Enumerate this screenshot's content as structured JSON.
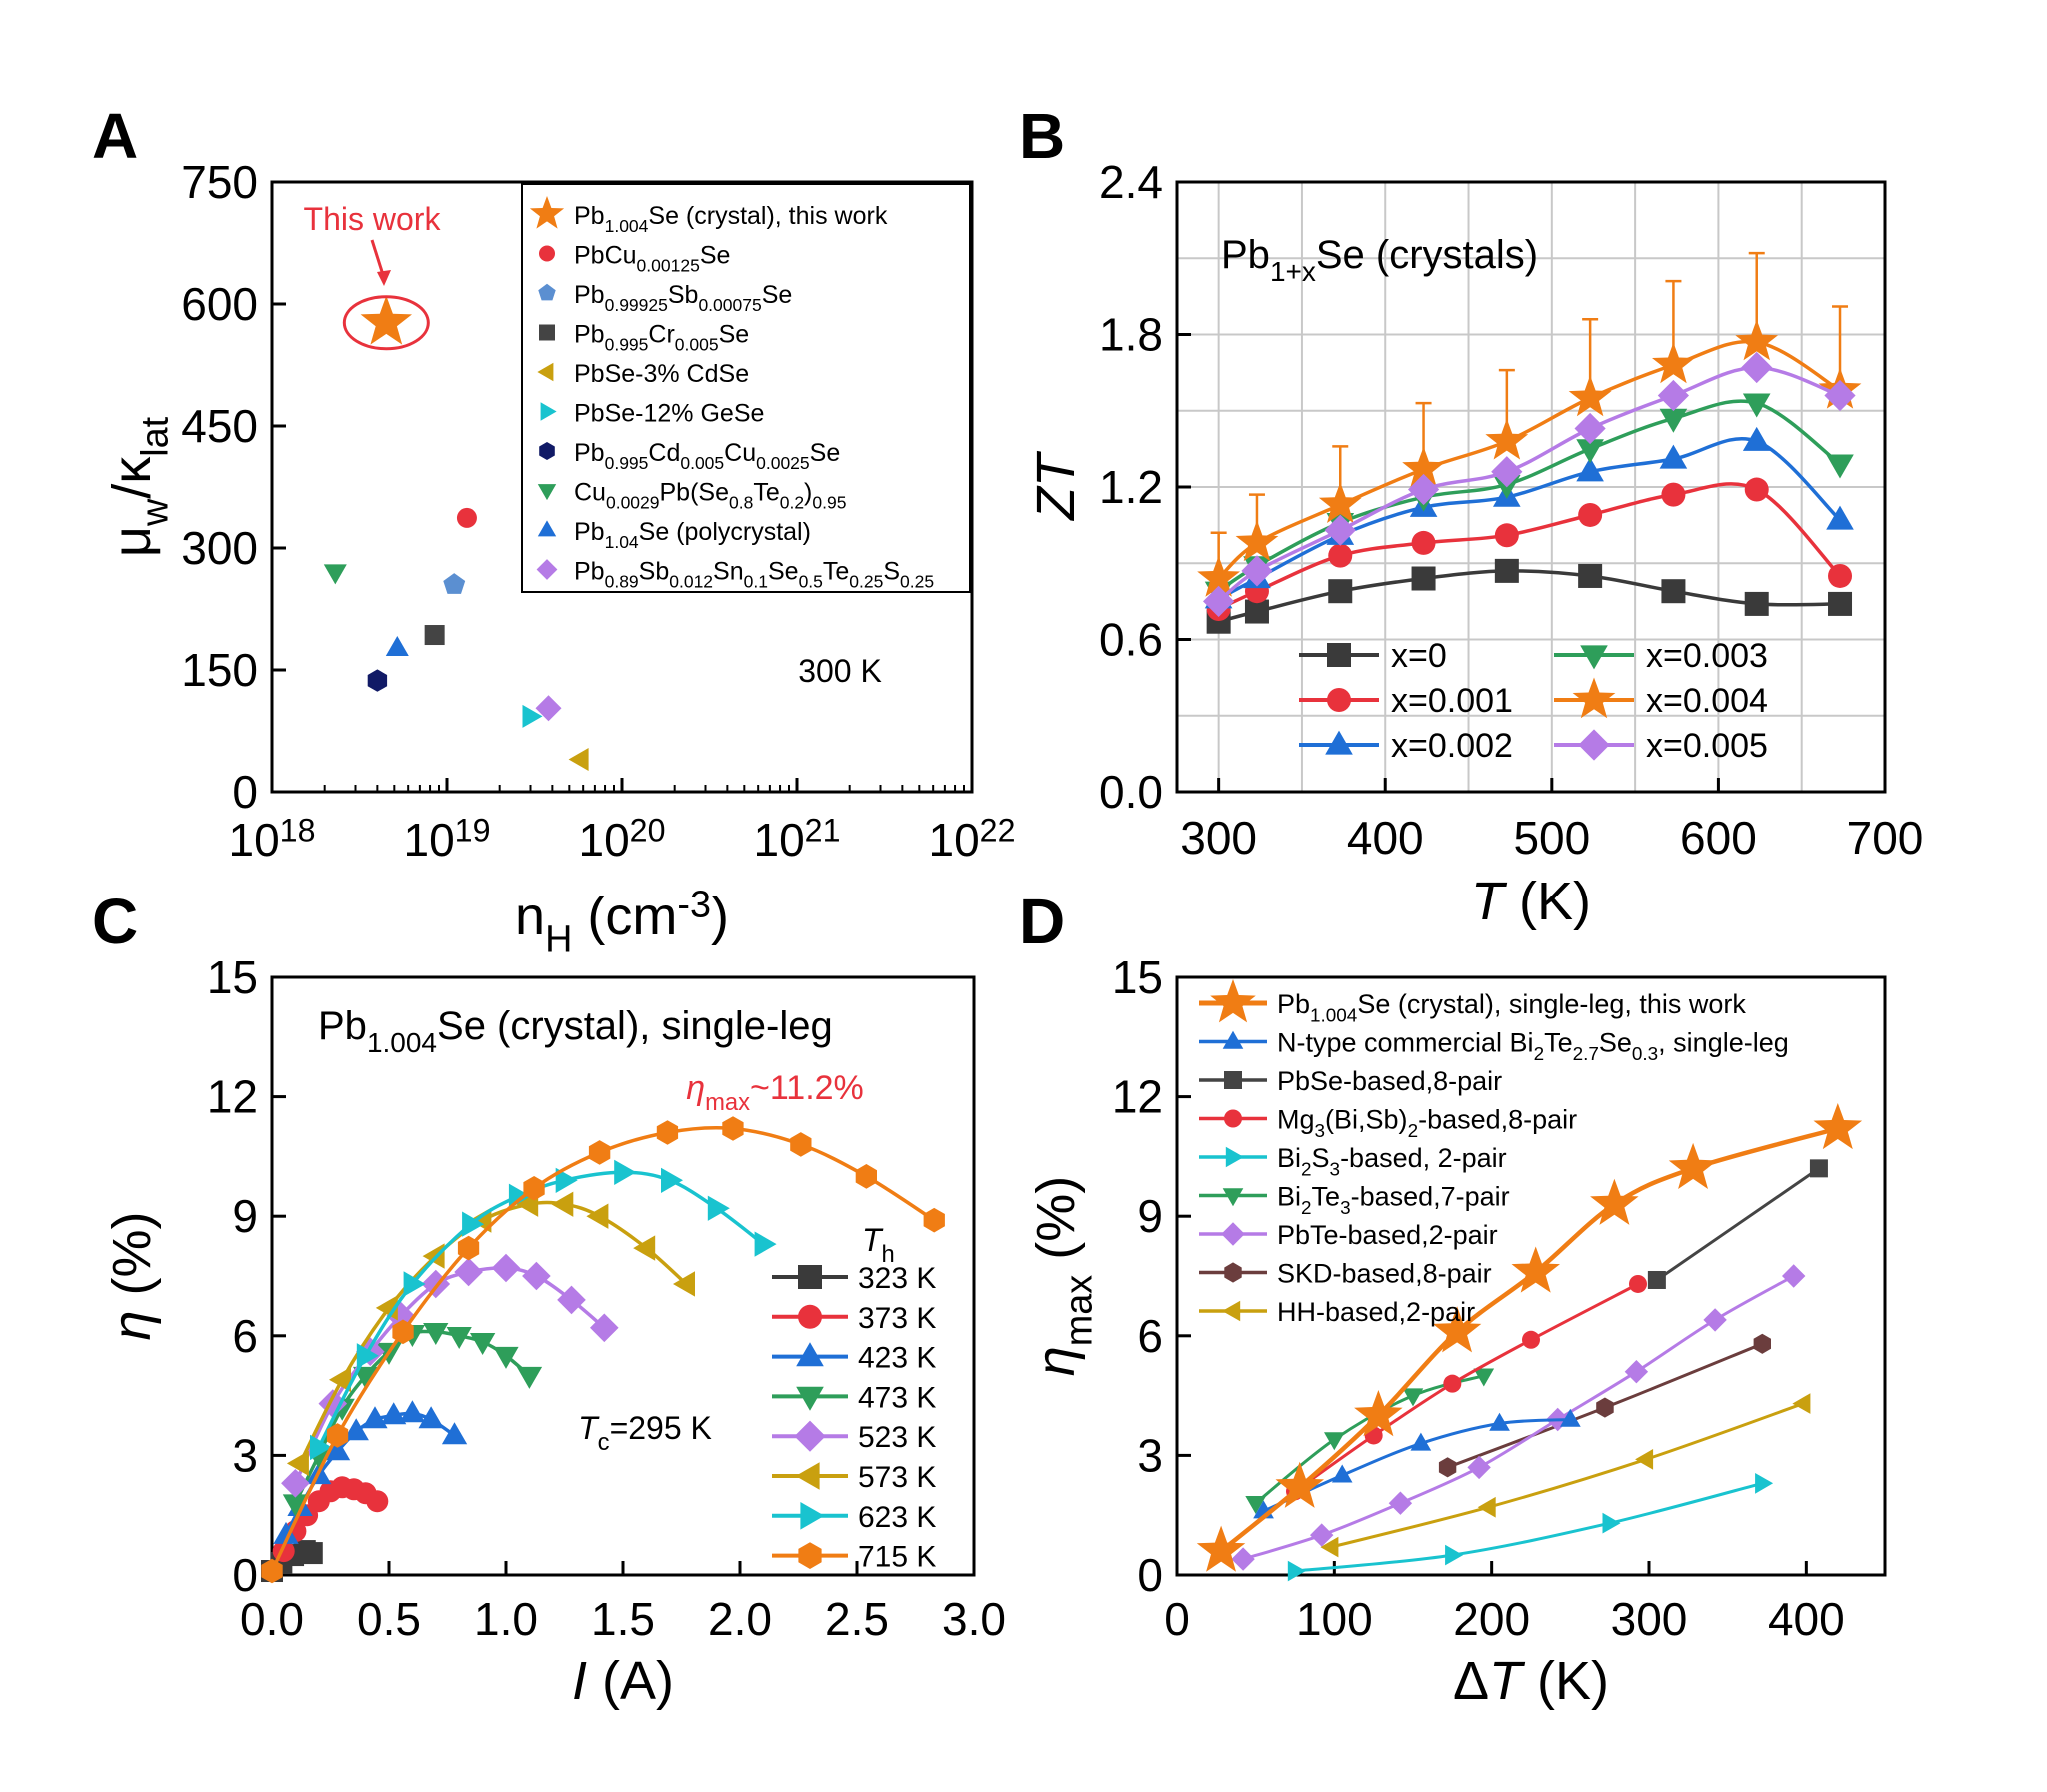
{
  "colors": {
    "black": "#3a3a3a",
    "red": "#e8323c",
    "blue": "#1f6fd6",
    "green": "#2e9e5a",
    "purple": "#b57be6",
    "orange": "#f07d14",
    "teal": "#19c3cf",
    "gold": "#c9a00f",
    "navy": "#111a66",
    "steel": "#5b8fd1",
    "brown": "#6b3d3d",
    "darkgray": "#444444"
  },
  "chart_data": [
    {
      "panel": "A",
      "type": "scatter",
      "xlabel": "nH (cm-3)",
      "ylabel": "μw/κlat",
      "xscale": "log",
      "xlim": [
        1e+18,
        1e+22
      ],
      "ylim": [
        0,
        750
      ],
      "xticks": [
        "10^18",
        "10^19",
        "10^20",
        "10^21",
        "10^22"
      ],
      "yticks": [
        "0",
        "150",
        "300",
        "450",
        "600",
        "750"
      ],
      "annotation": "This work",
      "temperature_label": "300 K",
      "series": [
        {
          "name": "Pb1.004Se (crystal), this work",
          "marker": "star",
          "color": "orange",
          "x": 4.5e+18,
          "y": 577
        },
        {
          "name": "PbCu0.00125Se",
          "marker": "circle",
          "color": "red",
          "x": 1.3e+19,
          "y": 337
        },
        {
          "name": "Pb0.99925Sb0.00075Se",
          "marker": "pentagon",
          "color": "steel",
          "x": 1.1e+19,
          "y": 255
        },
        {
          "name": "Pb0.995Cr0.005Se",
          "marker": "square",
          "color": "darkgray",
          "x": 8.5e+18,
          "y": 193
        },
        {
          "name": "PbSe-3% CdSe",
          "marker": "tri-left",
          "color": "gold",
          "x": 5.8e+19,
          "y": 40
        },
        {
          "name": "PbSe-12% GeSe",
          "marker": "tri-right",
          "color": "teal",
          "x": 3e+19,
          "y": 93
        },
        {
          "name": "Pb0.995Cd0.005Cu0.0025Se",
          "marker": "hexagon",
          "color": "navy",
          "x": 4e+18,
          "y": 137
        },
        {
          "name": "Cu0.0029Pb(Se0.8Te0.2)0.95",
          "marker": "tri-down",
          "color": "green",
          "x": 2.3e+18,
          "y": 270
        },
        {
          "name": "Pb1.04Se (polycrystal)",
          "marker": "tri-up",
          "color": "blue",
          "x": 5.2e+18,
          "y": 177
        },
        {
          "name": "Pb0.89Sb0.012Sn0.1Se0.5Te0.25S0.25",
          "marker": "diamond",
          "color": "purple",
          "x": 3.8e+19,
          "y": 103
        }
      ],
      "legend_labels_rich": [
        [
          [
            "Pb",
            0
          ],
          [
            "1.004",
            -1
          ],
          [
            "Se (crystal), this work",
            0
          ]
        ],
        [
          [
            "PbCu",
            0
          ],
          [
            "0.00125",
            -1
          ],
          [
            "Se",
            0
          ]
        ],
        [
          [
            "Pb",
            0
          ],
          [
            "0.99925",
            -1
          ],
          [
            "Sb",
            0
          ],
          [
            "0.00075",
            -1
          ],
          [
            "Se",
            0
          ]
        ],
        [
          [
            "Pb",
            0
          ],
          [
            "0.995",
            -1
          ],
          [
            "Cr",
            0
          ],
          [
            "0.005",
            -1
          ],
          [
            "Se",
            0
          ]
        ],
        [
          [
            "PbSe-3% CdSe",
            0
          ]
        ],
        [
          [
            "PbSe-12% GeSe",
            0
          ]
        ],
        [
          [
            "Pb",
            0
          ],
          [
            "0.995",
            -1
          ],
          [
            "Cd",
            0
          ],
          [
            "0.005",
            -1
          ],
          [
            "Cu",
            0
          ],
          [
            "0.0025",
            -1
          ],
          [
            "Se",
            0
          ]
        ],
        [
          [
            "Cu",
            0
          ],
          [
            "0.0029",
            -1
          ],
          [
            "Pb(Se",
            0
          ],
          [
            "0.8",
            -1
          ],
          [
            "Te",
            0
          ],
          [
            "0.2",
            -1
          ],
          [
            ")",
            0
          ],
          [
            "0.95",
            -1
          ]
        ],
        [
          [
            "Pb",
            0
          ],
          [
            "1.04",
            -1
          ],
          [
            "Se (polycrystal)",
            0
          ]
        ],
        [
          [
            "Pb",
            0
          ],
          [
            "0.89",
            -1
          ],
          [
            "Sb",
            0
          ],
          [
            "0.012",
            -1
          ],
          [
            "Sn",
            0
          ],
          [
            "0.1",
            -1
          ],
          [
            "Se",
            0
          ],
          [
            "0.5",
            -1
          ],
          [
            "Te",
            0
          ],
          [
            "0.25",
            -1
          ],
          [
            "S",
            0
          ],
          [
            "0.25",
            -1
          ]
        ]
      ]
    },
    {
      "panel": "B",
      "type": "line",
      "title": "Pb1+xSe (crystals)",
      "xlabel": "T (K)",
      "ylabel": "ZT",
      "xlim": [
        275,
        700
      ],
      "ylim": [
        0,
        2.4
      ],
      "xticks": [
        300,
        400,
        500,
        600,
        700
      ],
      "yticks": [
        "0.0",
        "0.6",
        "1.2",
        "1.8",
        "2.4"
      ],
      "grid": true,
      "x": [
        300,
        323,
        373,
        423,
        473,
        523,
        573,
        623,
        673
      ],
      "series": [
        {
          "name": "x=0",
          "marker": "square",
          "color": "black",
          "values": [
            0.67,
            0.71,
            0.79,
            0.84,
            0.87,
            0.85,
            0.79,
            0.74,
            0.74
          ]
        },
        {
          "name": "x=0.001",
          "marker": "circle",
          "color": "red",
          "values": [
            0.72,
            0.79,
            0.93,
            0.98,
            1.01,
            1.09,
            1.17,
            1.19,
            0.85
          ]
        },
        {
          "name": "x=0.002",
          "marker": "tri-up",
          "color": "blue",
          "values": [
            0.76,
            0.84,
            1.01,
            1.12,
            1.16,
            1.26,
            1.31,
            1.38,
            1.07
          ]
        },
        {
          "name": "x=0.003",
          "marker": "tri-down",
          "color": "green",
          "values": [
            0.79,
            0.89,
            1.06,
            1.16,
            1.21,
            1.35,
            1.47,
            1.53,
            1.29
          ]
        },
        {
          "name": "x=0.004",
          "marker": "star",
          "color": "orange",
          "values": [
            0.84,
            0.98,
            1.13,
            1.27,
            1.38,
            1.55,
            1.68,
            1.77,
            1.58
          ],
          "errors": [
            0.18,
            0.19,
            0.23,
            0.26,
            0.28,
            0.31,
            0.33,
            0.35,
            0.33
          ]
        },
        {
          "name": "x=0.005",
          "marker": "diamond",
          "color": "purple",
          "values": [
            0.75,
            0.87,
            1.03,
            1.19,
            1.26,
            1.43,
            1.56,
            1.67,
            1.56
          ]
        }
      ],
      "title_rich": [
        [
          "Pb",
          0
        ],
        [
          "1+x",
          -1
        ],
        [
          "Se (crystals)",
          0
        ]
      ]
    },
    {
      "panel": "C",
      "type": "line",
      "title": "Pb1.004Se (crystal), single-leg",
      "xlabel": "I (A)",
      "ylabel": "η (%)",
      "xlim": [
        0,
        3.0
      ],
      "ylim": [
        0,
        15
      ],
      "xticks": [
        "0.0",
        "0.5",
        "1.0",
        "1.5",
        "2.0",
        "2.5",
        "3.0"
      ],
      "yticks": [
        "0",
        "3",
        "6",
        "9",
        "12",
        "15"
      ],
      "legend_title": "Th",
      "annotation_max": "ηmax~11.2%",
      "annotation_tc": "Tc=295 K",
      "series": [
        {
          "name": "323 K",
          "marker": "square",
          "color": "black",
          "x": [
            0.0,
            0.04,
            0.09,
            0.14,
            0.17
          ],
          "y": [
            0.1,
            0.3,
            0.5,
            0.6,
            0.55
          ]
        },
        {
          "name": "373 K",
          "marker": "circle",
          "color": "red",
          "x": [
            0.05,
            0.1,
            0.15,
            0.2,
            0.25,
            0.3,
            0.35,
            0.4,
            0.45
          ],
          "y": [
            0.6,
            1.1,
            1.5,
            1.85,
            2.1,
            2.2,
            2.15,
            2.05,
            1.85
          ]
        },
        {
          "name": "423 K",
          "marker": "tri-up",
          "color": "blue",
          "x": [
            0.06,
            0.12,
            0.2,
            0.28,
            0.36,
            0.44,
            0.52,
            0.6,
            0.68,
            0.78
          ],
          "y": [
            1.0,
            1.7,
            2.5,
            3.1,
            3.6,
            3.9,
            4.0,
            4.05,
            3.9,
            3.5
          ]
        },
        {
          "name": "473 K",
          "marker": "tri-down",
          "color": "green",
          "x": [
            0.1,
            0.2,
            0.3,
            0.4,
            0.5,
            0.6,
            0.7,
            0.8,
            0.9,
            1.0,
            1.1
          ],
          "y": [
            1.8,
            3.0,
            4.2,
            5.0,
            5.6,
            6.05,
            6.1,
            6.0,
            5.85,
            5.5,
            5.0
          ]
        },
        {
          "name": "523 K",
          "marker": "diamond",
          "color": "purple",
          "x": [
            0.1,
            0.26,
            0.42,
            0.55,
            0.7,
            0.84,
            1.0,
            1.13,
            1.28,
            1.42
          ],
          "y": [
            2.3,
            4.3,
            5.6,
            6.5,
            7.3,
            7.6,
            7.7,
            7.5,
            6.9,
            6.2
          ]
        },
        {
          "name": "573 K",
          "marker": "tri-left",
          "color": "gold",
          "x": [
            0.12,
            0.3,
            0.5,
            0.7,
            0.9,
            1.1,
            1.25,
            1.4,
            1.6,
            1.77
          ],
          "y": [
            2.8,
            4.9,
            6.7,
            8.0,
            8.9,
            9.3,
            9.3,
            9.0,
            8.2,
            7.3
          ]
        },
        {
          "name": "623 K",
          "marker": "tri-right",
          "color": "teal",
          "x": [
            0.2,
            0.4,
            0.6,
            0.85,
            1.05,
            1.25,
            1.5,
            1.7,
            1.9,
            2.1
          ],
          "y": [
            3.2,
            5.5,
            7.3,
            8.8,
            9.5,
            9.9,
            10.1,
            9.9,
            9.2,
            8.3
          ]
        },
        {
          "name": "715 K",
          "marker": "hexagon",
          "color": "orange",
          "x": [
            0.0,
            0.28,
            0.56,
            0.84,
            1.12,
            1.4,
            1.69,
            1.97,
            2.26,
            2.54,
            2.83
          ],
          "y": [
            0.1,
            3.5,
            6.1,
            8.2,
            9.7,
            10.6,
            11.1,
            11.2,
            10.8,
            10.0,
            8.9
          ]
        }
      ],
      "title_rich": [
        [
          "Pb",
          0
        ],
        [
          "1.004",
          -1
        ],
        [
          "Se (crystal), single-leg",
          0
        ]
      ]
    },
    {
      "panel": "D",
      "type": "line",
      "xlabel": "ΔT (K)",
      "ylabel": "ηmax (%)",
      "xlim": [
        0,
        450
      ],
      "ylim": [
        0,
        15
      ],
      "xticks": [
        0,
        100,
        200,
        300,
        400
      ],
      "yticks": [
        "0",
        "3",
        "6",
        "9",
        "12",
        "15"
      ],
      "series": [
        {
          "name": "Pb1.004Se (crystal), single-leg, this work",
          "marker": "star",
          "color": "orange",
          "x": [
            28,
            78,
            128,
            178,
            228,
            278,
            328,
            420
          ],
          "y": [
            0.6,
            2.2,
            4.0,
            6.1,
            7.6,
            9.3,
            10.2,
            11.2
          ]
        },
        {
          "name": "N-type commercial Bi2Te2.7Se0.3, single-leg",
          "marker": "tri-up",
          "color": "blue",
          "x": [
            55,
            105,
            155,
            205,
            250
          ],
          "y": [
            1.6,
            2.5,
            3.3,
            3.8,
            3.9
          ]
        },
        {
          "name": "PbSe-based,8-pair",
          "marker": "square",
          "color": "darkgray",
          "x": [
            305,
            408
          ],
          "y": [
            7.4,
            10.2
          ]
        },
        {
          "name": "Mg3(Bi,Sb)2-based,8-pair",
          "marker": "circle",
          "color": "red",
          "x": [
            75,
            125,
            175,
            225,
            293
          ],
          "y": [
            2.1,
            3.5,
            4.8,
            5.9,
            7.3
          ]
        },
        {
          "name": "Bi2S3-based, 2-pair",
          "marker": "tri-right",
          "color": "teal",
          "x": [
            75,
            175,
            275,
            372
          ],
          "y": [
            0.1,
            0.5,
            1.3,
            2.3
          ]
        },
        {
          "name": "Bi2Te3-based,7-pair",
          "marker": "tri-down",
          "color": "green",
          "x": [
            50,
            100,
            150,
            195
          ],
          "y": [
            1.8,
            3.4,
            4.5,
            5.0
          ]
        },
        {
          "name": "PbTe-based,2-pair",
          "marker": "diamond",
          "color": "purple",
          "x": [
            42,
            92,
            142,
            192,
            242,
            292,
            342,
            392
          ],
          "y": [
            0.4,
            1.0,
            1.8,
            2.7,
            3.9,
            5.1,
            6.4,
            7.5
          ]
        },
        {
          "name": "SKD-based,8-pair",
          "marker": "hexagon",
          "color": "brown",
          "x": [
            172,
            272,
            372
          ],
          "y": [
            2.7,
            4.2,
            5.8
          ]
        },
        {
          "name": "HH-based,2-pair",
          "marker": "tri-left",
          "color": "gold",
          "x": [
            98,
            198,
            298,
            398
          ],
          "y": [
            0.7,
            1.7,
            2.9,
            4.3
          ]
        }
      ],
      "legend_labels_rich": [
        [
          [
            "Pb",
            0
          ],
          [
            "1.004",
            -1
          ],
          [
            "Se (crystal), single-leg, this work",
            0
          ]
        ],
        [
          [
            "N-type commercial Bi",
            0
          ],
          [
            "2",
            -1
          ],
          [
            "Te",
            0
          ],
          [
            "2.7",
            -1
          ],
          [
            "Se",
            0
          ],
          [
            "0.3",
            -1
          ],
          [
            ", single-leg",
            0
          ]
        ],
        [
          [
            "PbSe-based,8-pair",
            0
          ]
        ],
        [
          [
            "Mg",
            0
          ],
          [
            "3",
            -1
          ],
          [
            "(Bi,Sb)",
            0
          ],
          [
            "2",
            -1
          ],
          [
            "-based,8-pair",
            0
          ]
        ],
        [
          [
            "Bi",
            0
          ],
          [
            "2",
            -1
          ],
          [
            "S",
            0
          ],
          [
            "3",
            -1
          ],
          [
            "-based, 2-pair",
            0
          ]
        ],
        [
          [
            "Bi",
            0
          ],
          [
            "2",
            -1
          ],
          [
            "Te",
            0
          ],
          [
            "3",
            -1
          ],
          [
            "-based,7-pair",
            0
          ]
        ],
        [
          [
            "PbTe-based,2-pair",
            0
          ]
        ],
        [
          [
            "SKD-based,8-pair",
            0
          ]
        ],
        [
          [
            "HH-based,2-pair",
            0
          ]
        ]
      ]
    }
  ]
}
